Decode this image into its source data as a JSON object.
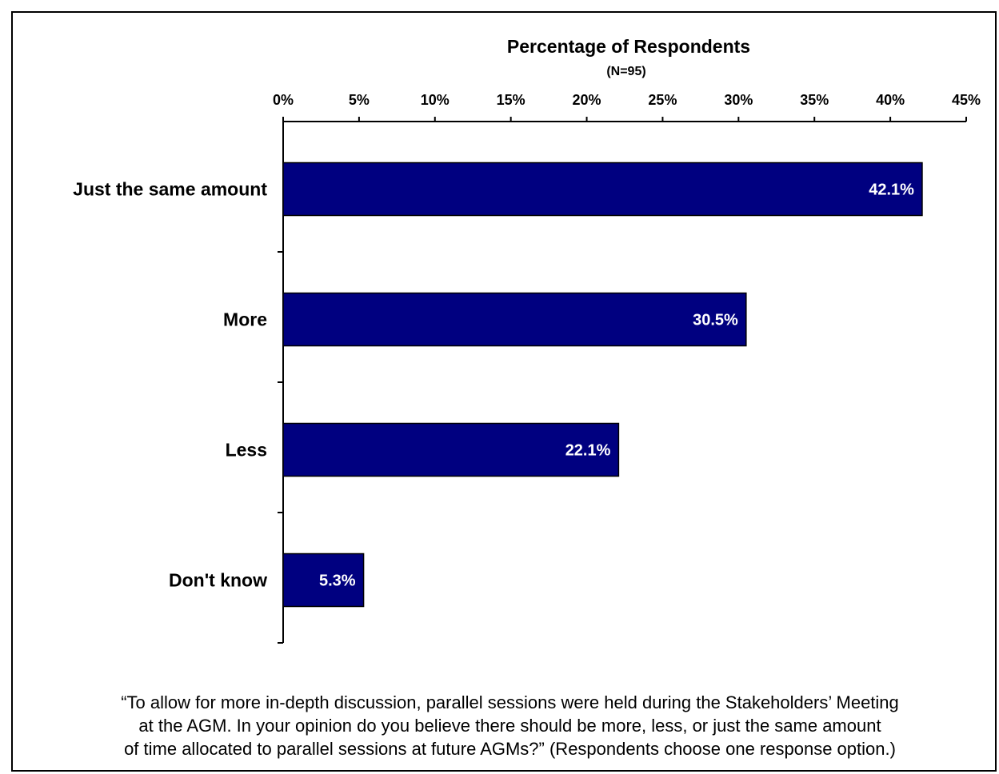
{
  "chart_data": {
    "type": "bar",
    "orientation": "horizontal",
    "title": "Percentage of Respondents",
    "subtitle": "(N=95)",
    "categories": [
      "Just the same amount",
      "More",
      "Less",
      "Don't know"
    ],
    "values": [
      42.1,
      30.5,
      22.1,
      5.3
    ],
    "data_labels": [
      "42.1%",
      "30.5%",
      "22.1%",
      "5.3%"
    ],
    "x_ticks": [
      0,
      5,
      10,
      15,
      20,
      25,
      30,
      35,
      40,
      45
    ],
    "x_tick_labels": [
      "0%",
      "5%",
      "10%",
      "15%",
      "20%",
      "25%",
      "30%",
      "35%",
      "40%",
      "45%"
    ],
    "xlim": [
      0,
      45
    ],
    "x_axis_position": "top",
    "grid": false,
    "bar_color": "#000080",
    "bar_label_color": "#ffffff"
  },
  "caption": {
    "lines": [
      "“To allow for more in-depth discussion, parallel sessions were held during the Stakeholders’ Meeting",
      "at the AGM.  In your opinion do you believe there should be more, less, or just the same amount",
      "of time allocated to parallel sessions at future AGMs?” (Respondents choose one response option.)"
    ]
  }
}
